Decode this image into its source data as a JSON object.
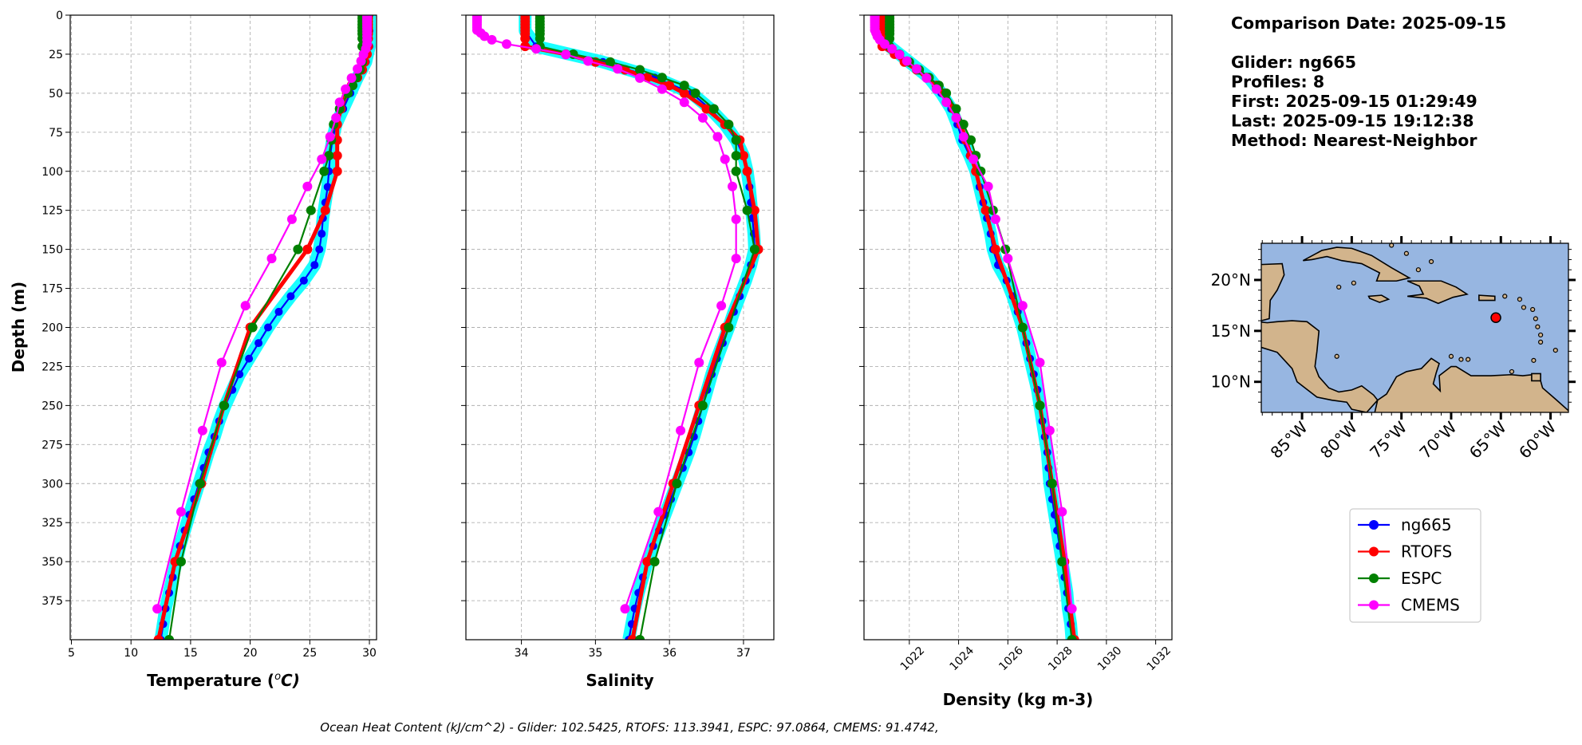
{
  "info": {
    "lines": [
      "Comparison Date: 2025-09-15",
      "",
      "Glider: ng665",
      "Profiles: 8",
      "First: 2025-09-15 01:29:49",
      "Last: 2025-09-15 19:12:38",
      "Method: Nearest-Neighbor"
    ]
  },
  "footer": "Ocean Heat Content (kJ/cm^2) - Glider: 102.5425,  RTOFS: 113.3941,  ESPC: 97.0864,  CMEMS: 91.4742,",
  "colors": {
    "ng665": "#0000ff",
    "RTOFS": "#ff0000",
    "ESPC": "#008000",
    "CMEMS": "#ff00ff",
    "glider_individual_profiles": "#00ffff",
    "ocean": "#97b6e1",
    "land": "#d2b48c",
    "grid": "#b0b0b0"
  },
  "chart_data": [
    {
      "type": "line",
      "ylabel": "Depth (m)",
      "xlabel": "Temperature (°C)",
      "xlabel_parts": [
        "Temperature (",
        "o",
        "C)"
      ],
      "xlim": [
        4.9,
        30.6
      ],
      "ylim": [
        400,
        0
      ],
      "xticks": [
        5,
        10,
        15,
        20,
        25,
        30
      ],
      "yticks": [
        0,
        25,
        50,
        75,
        100,
        125,
        150,
        175,
        200,
        225,
        250,
        275,
        300,
        325,
        350,
        375
      ],
      "grid": true,
      "series": [
        {
          "name": "ng665",
          "depth": [
            0,
            10,
            20,
            30,
            40,
            50,
            60,
            70,
            80,
            90,
            100,
            110,
            120,
            130,
            140,
            150,
            160,
            170,
            180,
            190,
            200,
            210,
            220,
            230,
            240,
            250,
            260,
            270,
            280,
            290,
            300,
            310,
            320,
            330,
            340,
            350,
            360,
            370,
            380,
            390,
            400
          ],
          "values": [
            30.0,
            30.0,
            30.0,
            29.7,
            29.0,
            28.4,
            27.8,
            27.2,
            26.9,
            26.7,
            26.6,
            26.5,
            26.3,
            26.1,
            26.0,
            25.8,
            25.4,
            24.5,
            23.4,
            22.4,
            21.5,
            20.7,
            19.9,
            19.1,
            18.5,
            17.9,
            17.4,
            17.0,
            16.5,
            16.1,
            15.7,
            15.3,
            14.9,
            14.5,
            14.1,
            13.8,
            13.5,
            13.2,
            12.9,
            12.7,
            12.5
          ]
        },
        {
          "name": "RTOFS",
          "depth": [
            0,
            2,
            4,
            6,
            8,
            10,
            12,
            15,
            20,
            25,
            30,
            35,
            40,
            45,
            50,
            60,
            70,
            80,
            90,
            100,
            125,
            150,
            200,
            250,
            300,
            350,
            400
          ],
          "values": [
            29.9,
            29.9,
            29.9,
            29.9,
            29.9,
            29.9,
            29.9,
            29.9,
            29.9,
            29.8,
            29.6,
            29.4,
            29.0,
            28.5,
            28.1,
            27.6,
            27.3,
            27.3,
            27.3,
            27.3,
            26.3,
            24.8,
            20.0,
            17.8,
            15.9,
            13.7,
            12.3
          ]
        },
        {
          "name": "ESPC",
          "depth": [
            0,
            2,
            4,
            6,
            8,
            10,
            12,
            15,
            20,
            25,
            30,
            35,
            40,
            45,
            50,
            60,
            70,
            80,
            90,
            100,
            125,
            150,
            200,
            250,
            300,
            350,
            400
          ],
          "values": [
            29.4,
            29.4,
            29.4,
            29.4,
            29.4,
            29.4,
            29.4,
            29.4,
            29.4,
            29.5,
            29.4,
            29.2,
            28.9,
            28.6,
            28.2,
            27.5,
            27.0,
            26.8,
            26.6,
            26.2,
            25.1,
            24.0,
            20.2,
            17.8,
            15.8,
            14.2,
            13.2
          ]
        },
        {
          "name": "CMEMS",
          "depth": [
            0.5,
            1.5,
            2.6,
            3.8,
            5.0,
            6.4,
            7.9,
            9.6,
            11.4,
            13.5,
            15.8,
            18.5,
            21.6,
            25.2,
            29.4,
            34.4,
            40.3,
            47.4,
            55.8,
            65.8,
            77.9,
            92.3,
            109.7,
            130.7,
            155.9,
            186.1,
            222.5,
            266.0,
            318.1,
            380.2
          ],
          "values": [
            29.8,
            29.8,
            29.8,
            29.8,
            29.8,
            29.8,
            29.8,
            29.8,
            29.8,
            29.8,
            29.8,
            29.8,
            29.7,
            29.5,
            29.3,
            29.0,
            28.5,
            28.0,
            27.5,
            27.2,
            26.7,
            26.0,
            24.8,
            23.5,
            21.8,
            19.6,
            17.6,
            16.0,
            14.2,
            12.2
          ]
        }
      ]
    },
    {
      "type": "line",
      "xlabel": "Salinity",
      "xlim": [
        33.25,
        37.41
      ],
      "ylim": [
        400,
        0
      ],
      "xticks": [
        34,
        35,
        36,
        37
      ],
      "grid": true,
      "series": [
        {
          "name": "ng665",
          "depth": [
            0,
            10,
            20,
            30,
            40,
            50,
            60,
            70,
            80,
            90,
            100,
            110,
            120,
            130,
            140,
            150,
            160,
            170,
            180,
            190,
            200,
            210,
            220,
            230,
            240,
            250,
            260,
            270,
            280,
            290,
            300,
            310,
            320,
            330,
            340,
            350,
            360,
            370,
            380,
            390,
            400
          ],
          "values": [
            34.05,
            34.05,
            34.2,
            35.1,
            35.8,
            36.3,
            36.55,
            36.75,
            36.9,
            37.0,
            37.05,
            37.08,
            37.1,
            37.12,
            37.14,
            37.15,
            37.1,
            37.03,
            36.95,
            36.87,
            36.8,
            36.72,
            36.64,
            36.57,
            36.51,
            36.45,
            36.39,
            36.33,
            36.26,
            36.18,
            36.1,
            36.02,
            35.94,
            35.86,
            35.78,
            35.7,
            35.64,
            35.58,
            35.53,
            35.49,
            35.45
          ]
        },
        {
          "name": "RTOFS",
          "depth": [
            0,
            2,
            4,
            6,
            8,
            10,
            12,
            15,
            20,
            25,
            30,
            35,
            40,
            45,
            50,
            60,
            70,
            80,
            90,
            100,
            125,
            150,
            200,
            250,
            300,
            350,
            400
          ],
          "values": [
            34.05,
            34.05,
            34.05,
            34.05,
            34.05,
            34.05,
            34.05,
            34.05,
            34.05,
            34.6,
            35.0,
            35.4,
            35.7,
            36.0,
            36.2,
            36.5,
            36.75,
            36.95,
            37.0,
            37.05,
            37.15,
            37.2,
            36.75,
            36.4,
            36.05,
            35.7,
            35.5
          ]
        },
        {
          "name": "ESPC",
          "depth": [
            0,
            2,
            4,
            6,
            8,
            10,
            12,
            15,
            20,
            25,
            30,
            35,
            40,
            45,
            50,
            60,
            70,
            80,
            90,
            100,
            125,
            150,
            200,
            250,
            300,
            350,
            400
          ],
          "values": [
            34.25,
            34.25,
            34.25,
            34.25,
            34.25,
            34.25,
            34.25,
            34.25,
            34.25,
            34.7,
            35.2,
            35.6,
            35.9,
            36.2,
            36.35,
            36.6,
            36.8,
            36.9,
            36.9,
            36.9,
            37.05,
            37.15,
            36.8,
            36.45,
            36.1,
            35.8,
            35.6
          ]
        },
        {
          "name": "CMEMS",
          "depth": [
            0.5,
            1.5,
            2.6,
            3.8,
            5.0,
            6.4,
            7.9,
            9.6,
            11.4,
            13.5,
            15.8,
            18.5,
            21.6,
            25.2,
            29.4,
            34.4,
            40.3,
            47.4,
            55.8,
            65.8,
            77.9,
            92.3,
            109.7,
            130.7,
            155.9,
            186.1,
            222.5,
            266.0,
            318.1,
            380.2
          ],
          "values": [
            33.4,
            33.4,
            33.4,
            33.4,
            33.4,
            33.4,
            33.4,
            33.4,
            33.45,
            33.5,
            33.6,
            33.8,
            34.2,
            34.6,
            34.9,
            35.3,
            35.6,
            35.9,
            36.2,
            36.45,
            36.65,
            36.75,
            36.85,
            36.9,
            36.9,
            36.7,
            36.4,
            36.15,
            35.85,
            35.4
          ]
        }
      ]
    },
    {
      "type": "line",
      "xlabel": "Density (kg m-3)",
      "xlim": [
        1020.16,
        1032.66
      ],
      "ylim": [
        400,
        0
      ],
      "xticks": [
        1022,
        1024,
        1026,
        1028,
        1030,
        1032
      ],
      "grid": true,
      "series": [
        {
          "name": "ng665",
          "depth": [
            0,
            10,
            20,
            30,
            40,
            50,
            60,
            70,
            80,
            90,
            100,
            110,
            120,
            130,
            140,
            150,
            160,
            170,
            180,
            190,
            200,
            210,
            220,
            230,
            240,
            250,
            260,
            270,
            280,
            290,
            300,
            310,
            320,
            330,
            340,
            350,
            360,
            370,
            380,
            390,
            400
          ],
          "values": [
            1020.8,
            1020.8,
            1021.2,
            1022.0,
            1022.8,
            1023.3,
            1023.7,
            1023.95,
            1024.15,
            1024.45,
            1024.7,
            1024.85,
            1025.0,
            1025.15,
            1025.3,
            1025.4,
            1025.6,
            1025.95,
            1026.2,
            1026.4,
            1026.6,
            1026.75,
            1026.9,
            1027.05,
            1027.2,
            1027.3,
            1027.4,
            1027.5,
            1027.6,
            1027.65,
            1027.7,
            1027.8,
            1027.9,
            1028.0,
            1028.1,
            1028.2,
            1028.3,
            1028.4,
            1028.45,
            1028.55,
            1028.6
          ]
        },
        {
          "name": "RTOFS",
          "depth": [
            0,
            2,
            4,
            6,
            8,
            10,
            12,
            15,
            20,
            25,
            30,
            35,
            40,
            45,
            50,
            60,
            70,
            80,
            90,
            100,
            125,
            150,
            200,
            250,
            300,
            350,
            400
          ],
          "values": [
            1020.9,
            1020.9,
            1020.9,
            1020.9,
            1020.9,
            1020.9,
            1020.9,
            1020.9,
            1020.9,
            1021.4,
            1021.8,
            1022.3,
            1022.7,
            1023.1,
            1023.4,
            1023.8,
            1024.1,
            1024.3,
            1024.5,
            1024.7,
            1025.1,
            1025.5,
            1026.6,
            1027.3,
            1027.8,
            1028.3,
            1028.7
          ]
        },
        {
          "name": "ESPC",
          "depth": [
            0,
            2,
            4,
            6,
            8,
            10,
            12,
            15,
            20,
            25,
            30,
            35,
            40,
            45,
            50,
            60,
            70,
            80,
            90,
            100,
            125,
            150,
            200,
            250,
            300,
            350,
            400
          ],
          "values": [
            1021.2,
            1021.2,
            1021.2,
            1021.2,
            1021.2,
            1021.2,
            1021.2,
            1021.2,
            1021.2,
            1021.6,
            1022.0,
            1022.4,
            1022.8,
            1023.2,
            1023.5,
            1023.9,
            1024.2,
            1024.5,
            1024.7,
            1024.9,
            1025.4,
            1025.9,
            1026.6,
            1027.3,
            1027.8,
            1028.2,
            1028.6
          ]
        },
        {
          "name": "CMEMS",
          "depth": [
            0.5,
            1.5,
            2.6,
            3.8,
            5.0,
            6.4,
            7.9,
            9.6,
            11.4,
            13.5,
            15.8,
            18.5,
            21.6,
            25.2,
            29.4,
            34.4,
            40.3,
            47.4,
            55.8,
            65.8,
            77.9,
            92.3,
            109.7,
            130.7,
            155.9,
            186.1,
            222.5,
            266.0,
            318.1,
            380.2
          ],
          "values": [
            1020.6,
            1020.6,
            1020.6,
            1020.6,
            1020.6,
            1020.6,
            1020.6,
            1020.6,
            1020.65,
            1020.7,
            1020.8,
            1021.0,
            1021.3,
            1021.6,
            1021.9,
            1022.3,
            1022.7,
            1023.1,
            1023.5,
            1023.9,
            1024.2,
            1024.6,
            1025.2,
            1025.5,
            1026.0,
            1026.6,
            1027.3,
            1027.7,
            1028.2,
            1028.6
          ]
        }
      ]
    }
  ],
  "map": {
    "lon_range": [
      -89.1,
      -58.2
    ],
    "lat_range": [
      7.0,
      23.6
    ],
    "lon_ticks": [
      {
        "v": -85,
        "label": "85°W"
      },
      {
        "v": -80,
        "label": "80°W"
      },
      {
        "v": -75,
        "label": "75°W"
      },
      {
        "v": -70,
        "label": "70°W"
      },
      {
        "v": -65,
        "label": "65°W"
      },
      {
        "v": -60,
        "label": "60°W"
      }
    ],
    "lat_ticks": [
      {
        "v": 10,
        "label": "10°N"
      },
      {
        "v": 15,
        "label": "15°N"
      },
      {
        "v": 20,
        "label": "20°N"
      }
    ],
    "glider_position": {
      "lon": -65.5,
      "lat": 16.3
    }
  },
  "legend": {
    "placement": "lower-right",
    "entries": [
      "ng665",
      "RTOFS",
      "ESPC",
      "CMEMS"
    ]
  }
}
